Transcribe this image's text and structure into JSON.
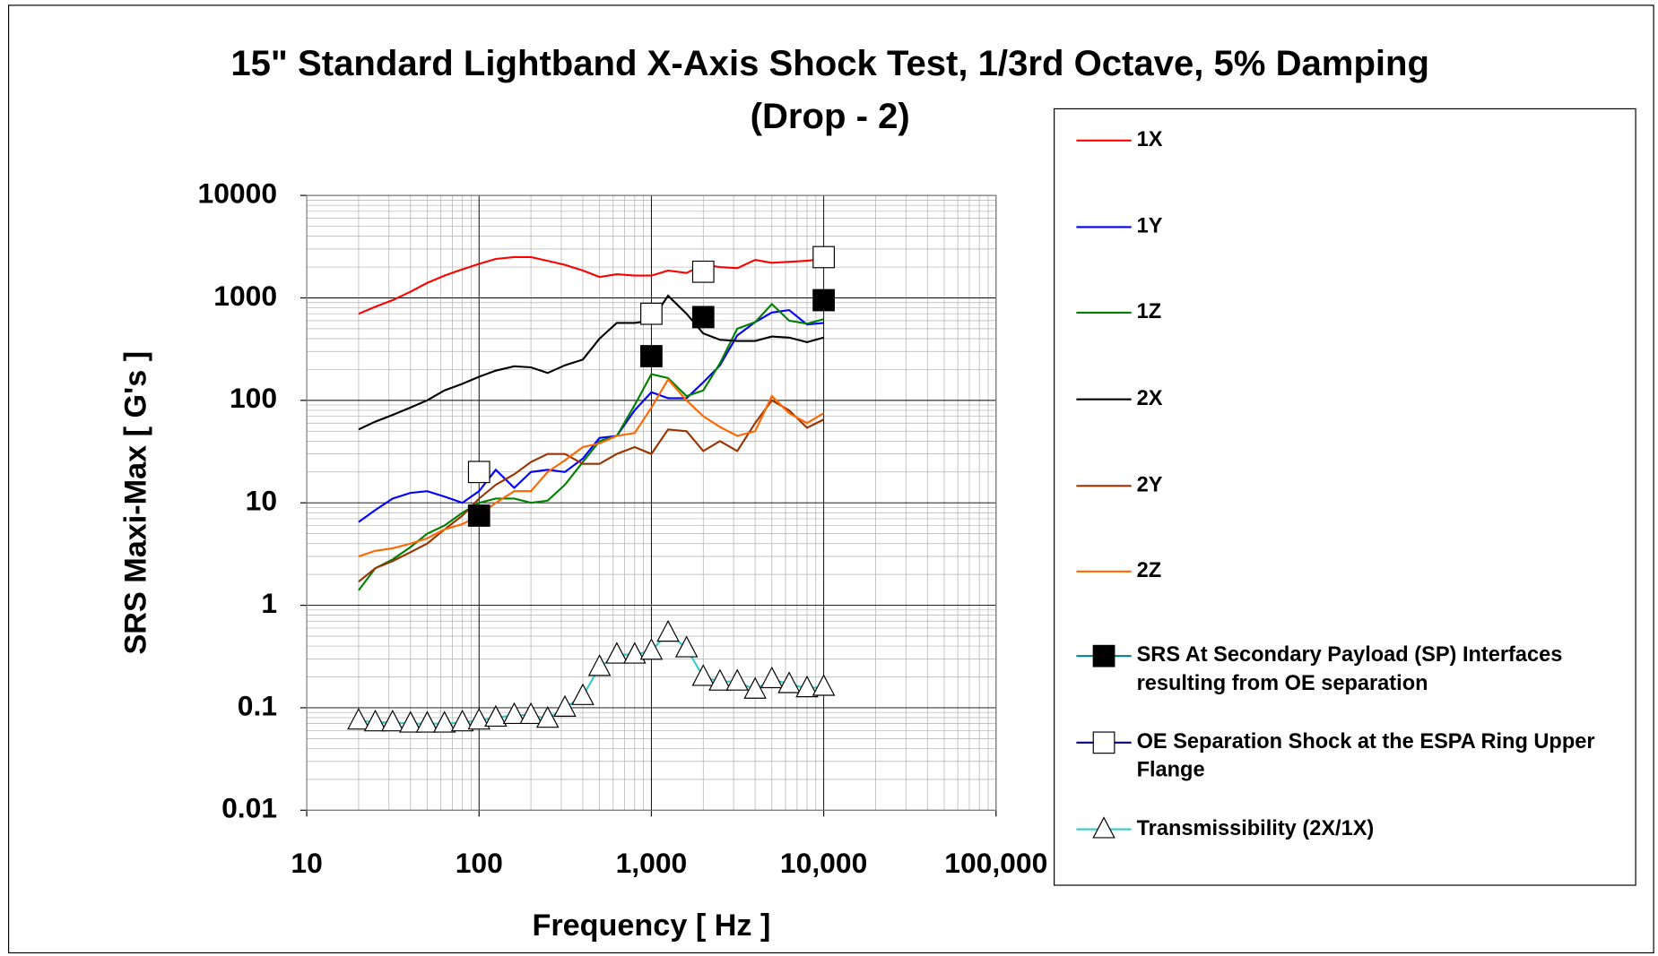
{
  "chart_data": {
    "type": "line",
    "title": "15\" Standard Lightband X-Axis Shock Test, 1/3rd Octave, 5% Damping (Drop - 2)",
    "xlabel": "Frequency [ Hz ]",
    "ylabel": "SRS Maxi-Max [ G's ]",
    "log_x": true,
    "log_y": true,
    "grid": true,
    "legend": "right",
    "xlim": [
      10,
      100000
    ],
    "ylim": [
      0.01,
      10000
    ],
    "xticks": [
      10,
      100,
      {
        "value": 1000,
        "label": "1,000"
      },
      {
        "value": 10000,
        "label": "10,000"
      },
      {
        "value": 100000,
        "label": "100,000"
      }
    ],
    "yticks": [
      0.01,
      0.1,
      1,
      10,
      100,
      1000,
      10000
    ],
    "x": [
      20,
      25,
      31.5,
      40,
      50,
      63,
      80,
      100,
      125,
      160,
      200,
      250,
      315,
      400,
      500,
      630,
      800,
      1000,
      1250,
      1600,
      2000,
      2500,
      3150,
      4000,
      5000,
      6300,
      8000,
      10000
    ],
    "series": [
      {
        "name": "1X",
        "color": "#ff0000",
        "marker": "none",
        "values": [
          700,
          820,
          950,
          1150,
          1400,
          1650,
          1900,
          2150,
          2400,
          2500,
          2500,
          2300,
          2100,
          1850,
          1600,
          1700,
          1650,
          1650,
          1850,
          1750,
          2100,
          2000,
          1950,
          2350,
          2200,
          2250,
          2300,
          2400
        ]
      },
      {
        "name": "1Y",
        "color": "#0000ff",
        "marker": "none",
        "values": [
          6.5,
          8.5,
          11,
          12.5,
          13,
          11.5,
          10,
          13,
          21,
          14,
          20,
          21,
          20,
          27,
          43,
          45,
          80,
          120,
          105,
          105,
          150,
          220,
          430,
          580,
          720,
          760,
          550,
          570
        ]
      },
      {
        "name": "1Z",
        "color": "#008000",
        "marker": "none",
        "values": [
          1.4,
          2.3,
          2.8,
          3.7,
          5,
          6,
          8,
          10,
          11,
          11,
          10,
          10.5,
          15,
          25,
          40,
          45,
          90,
          180,
          165,
          110,
          125,
          230,
          500,
          580,
          870,
          600,
          560,
          620
        ]
      },
      {
        "name": "2X",
        "color": "#000000",
        "marker": "none",
        "values": [
          52,
          62,
          72,
          85,
          100,
          125,
          145,
          170,
          195,
          215,
          210,
          185,
          220,
          250,
          400,
          570,
          570,
          600,
          1050,
          700,
          450,
          390,
          380,
          380,
          420,
          410,
          370,
          410
        ]
      },
      {
        "name": "2Y",
        "color": "#993300",
        "marker": "none",
        "values": [
          1.7,
          2.3,
          2.7,
          3.3,
          4,
          5.5,
          7.5,
          11,
          15,
          19,
          25,
          30,
          30,
          24,
          24,
          30,
          35,
          30,
          52,
          50,
          32,
          40,
          32,
          60,
          100,
          80,
          54,
          65
        ]
      },
      {
        "name": "2Z",
        "color": "#ff6600",
        "marker": "none",
        "values": [
          3,
          3.4,
          3.6,
          4,
          4.5,
          5.5,
          6.2,
          7.5,
          10,
          13,
          13,
          20,
          26,
          35,
          38,
          45,
          48,
          85,
          160,
          100,
          70,
          55,
          45,
          50,
          110,
          75,
          60,
          75
        ]
      },
      {
        "name": "SRS At Secondary Payload (SP) Interfaces resulting from OE separation",
        "color": "#008080",
        "marker": "filled-square",
        "line": false,
        "x": [
          100,
          1000,
          2000,
          10000
        ],
        "values": [
          7.5,
          270,
          650,
          950
        ]
      },
      {
        "name": "OE Separation Shock at the ESPA Ring Upper Flange",
        "color": "#000080",
        "marker": "open-square",
        "line": false,
        "x": [
          100,
          1000,
          2000,
          10000
        ],
        "values": [
          20,
          700,
          1800,
          2500
        ]
      },
      {
        "name": "Transmissibility (2X/1X)",
        "color": "#33cccc",
        "marker": "open-triangle",
        "values": [
          0.075,
          0.072,
          0.072,
          0.07,
          0.07,
          0.07,
          0.072,
          0.075,
          0.08,
          0.085,
          0.085,
          0.078,
          0.1,
          0.13,
          0.25,
          0.33,
          0.33,
          0.36,
          0.54,
          0.38,
          0.2,
          0.18,
          0.18,
          0.15,
          0.19,
          0.17,
          0.155,
          0.16
        ]
      }
    ]
  }
}
